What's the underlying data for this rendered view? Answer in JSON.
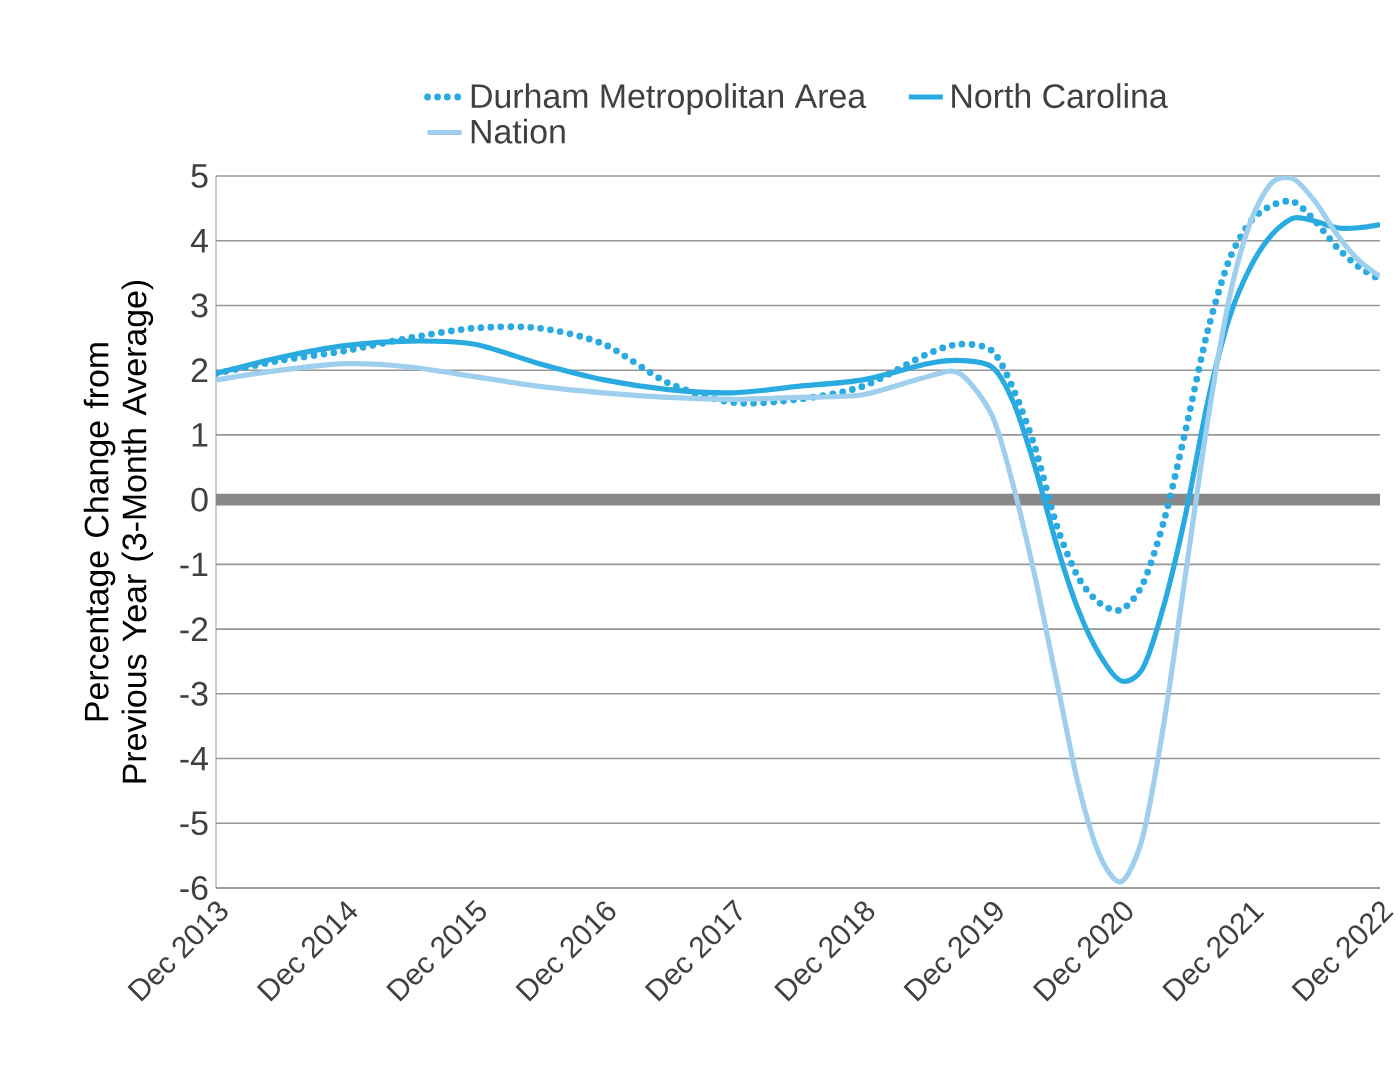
{
  "chart_data": {
    "type": "line",
    "ylabel": "Percentage Change from Previous Year (3-Month Average)",
    "x": [
      "2013-12",
      "2014-06",
      "2014-12",
      "2015-06",
      "2015-12",
      "2016-06",
      "2016-12",
      "2017-06",
      "2017-12",
      "2018-06",
      "2018-12",
      "2019-06",
      "2019-09",
      "2019-12",
      "2020-02",
      "2020-04",
      "2020-06",
      "2020-08",
      "2020-10",
      "2020-12",
      "2021-02",
      "2021-04",
      "2021-06",
      "2021-08",
      "2021-10",
      "2021-12",
      "2022-02",
      "2022-04",
      "2022-06",
      "2022-08",
      "2022-10",
      "2022-12"
    ],
    "series": [
      {
        "name": "Durham Metropolitan Area",
        "color": "#29aae1",
        "line_style": "dotted",
        "values": [
          1.95,
          2.15,
          2.3,
          2.5,
          2.65,
          2.65,
          2.4,
          1.8,
          1.5,
          1.55,
          1.75,
          2.25,
          2.4,
          2.3,
          1.7,
          0.8,
          -0.4,
          -1.2,
          -1.6,
          -1.7,
          -1.3,
          -0.3,
          1.1,
          2.6,
          3.7,
          4.3,
          4.55,
          4.6,
          4.3,
          3.9,
          3.6,
          3.4
        ]
      },
      {
        "name": "North Carolina",
        "color": "#29aae1",
        "line_style": "solid",
        "values": [
          1.95,
          2.2,
          2.38,
          2.45,
          2.4,
          2.1,
          1.85,
          1.7,
          1.65,
          1.75,
          1.85,
          2.1,
          2.15,
          2.05,
          1.5,
          0.5,
          -0.7,
          -1.7,
          -2.4,
          -2.8,
          -2.6,
          -1.6,
          -0.2,
          1.5,
          2.8,
          3.6,
          4.1,
          4.35,
          4.3,
          4.2,
          4.2,
          4.25
        ]
      },
      {
        "name": "Nation",
        "color": "#9fcfee",
        "line_style": "solid",
        "values": [
          1.85,
          2.0,
          2.1,
          2.05,
          1.9,
          1.75,
          1.65,
          1.58,
          1.55,
          1.58,
          1.62,
          1.9,
          1.95,
          1.3,
          0.2,
          -1.2,
          -2.8,
          -4.4,
          -5.5,
          -5.9,
          -5.2,
          -3.4,
          -1.1,
          1.2,
          3.1,
          4.3,
          4.9,
          4.95,
          4.6,
          4.1,
          3.7,
          3.45
        ]
      }
    ],
    "xlim": [
      "2013-12",
      "2022-12"
    ],
    "xticks": [
      {
        "value": "2013-12",
        "label": "Dec 2013"
      },
      {
        "value": "2014-12",
        "label": "Dec 2014"
      },
      {
        "value": "2015-12",
        "label": "Dec 2015"
      },
      {
        "value": "2016-12",
        "label": "Dec 2016"
      },
      {
        "value": "2017-12",
        "label": "Dec 2017"
      },
      {
        "value": "2018-12",
        "label": "Dec 2018"
      },
      {
        "value": "2019-12",
        "label": "Dec 2019"
      },
      {
        "value": "2020-12",
        "label": "Dec 2020"
      },
      {
        "value": "2021-12",
        "label": "Dec 2021"
      },
      {
        "value": "2022-12",
        "label": "Dec 2022"
      }
    ],
    "ylim": [
      -6,
      5
    ],
    "yticks": [
      -6,
      -5,
      -4,
      -3,
      -2,
      -1,
      0,
      1,
      2,
      3,
      4,
      5
    ],
    "ref_lines": [
      {
        "axis": "y",
        "value": 0,
        "color": "#888888"
      }
    ],
    "grid": "y",
    "legend": "top",
    "marker": "none"
  }
}
